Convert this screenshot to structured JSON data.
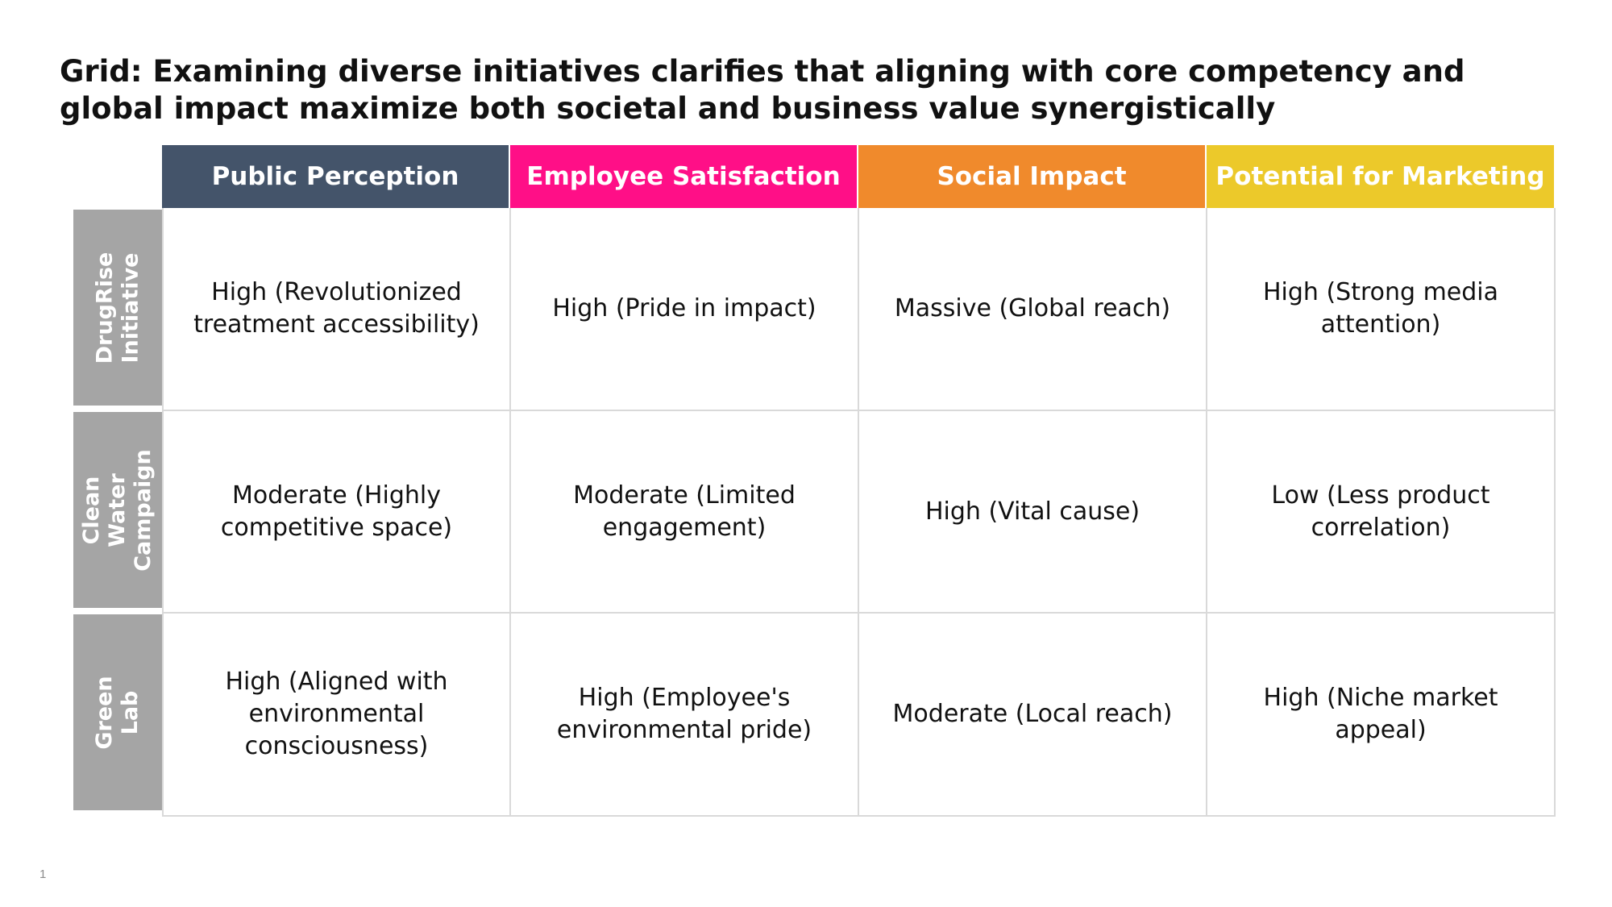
{
  "slide": {
    "title": "Grid: Examining diverse initiatives clarifies that aligning with core competency and global impact maximize both societal and business value synergistically",
    "page_number": "1"
  },
  "columns": [
    {
      "label": "Public Perception",
      "color": "#44546a"
    },
    {
      "label": "Employee Satisfaction",
      "color": "#ff0f87"
    },
    {
      "label": "Social Impact",
      "color": "#f08a2c"
    },
    {
      "label": "Potential for Marketing",
      "color": "#ecc92a"
    }
  ],
  "rows": [
    {
      "label": "DrugRise\nInitiative",
      "color": "#a5a5a5",
      "cells": [
        "High (Revolutionized treatment accessibility)",
        "High (Pride in impact)",
        "Massive (Global reach)",
        "High (Strong media attention)"
      ]
    },
    {
      "label": "Clean Water\nCampaign",
      "color": "#a5a5a5",
      "cells": [
        "Moderate (Highly competitive space)",
        "Moderate (Limited engagement)",
        "High (Vital cause)",
        "Low (Less product correlation)"
      ]
    },
    {
      "label": "Green Lab",
      "color": "#a5a5a5",
      "cells": [
        "High (Aligned with environmental consciousness)",
        "High (Employee's environmental pride)",
        "Moderate (Local reach)",
        "High (Niche market appeal)"
      ]
    }
  ]
}
